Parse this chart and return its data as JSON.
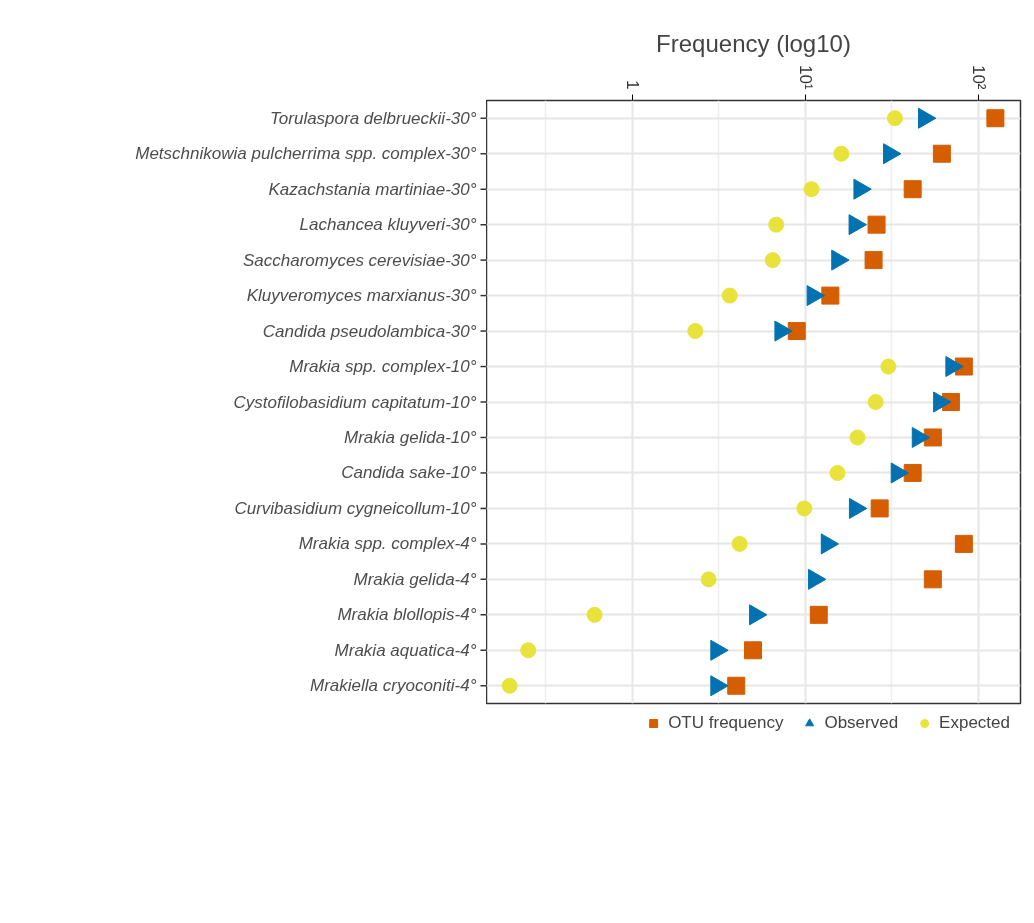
{
  "chart_data": {
    "type": "scatter",
    "xlabel": "Frequency (log10)",
    "log": "x",
    "grid": true,
    "legend": "bottom",
    "categories": [
      "Torulaspora delbrueckii-30°",
      "Metschnikowia pulcherrima spp. complex-30°",
      "Kazachstania martiniae-30°",
      "Lachancea kluyveri-30°",
      "Saccharomyces cerevisiae-30°",
      "Kluyveromyces marxianus-30°",
      "Candida pseudolambica-30°",
      "Mrakia spp. complex-10°",
      "Cystofilobasidium capitatum-10°",
      "Mrakia gelida-10°",
      "Candida sake-10°",
      "Curvibasidium cygneicollum-10°",
      "Mrakia spp. complex-4°",
      "Mrakia gelida-4°",
      "Mrakia blollopis-4°",
      "Mrakia aquatica-4°",
      "Mrakiella cryoconiti-4°"
    ],
    "orientation": "horizontal",
    "xlim": [
      0.144,
      176
    ],
    "xticks": [
      {
        "value": 1,
        "label": "1"
      },
      {
        "value": 10,
        "label": "10¹"
      },
      {
        "value": 100,
        "label": "10²"
      }
    ],
    "series": [
      {
        "name": "OTU frequency",
        "color": "#d55e00",
        "marker": "square",
        "values": [
          126,
          61.8,
          41.9,
          25.9,
          24.9,
          14.0,
          8.95,
          82.8,
          69.7,
          54.8,
          41.9,
          27.0,
          82.8,
          54.8,
          12.0,
          5.0,
          4.0
        ]
      },
      {
        "name": "Observed",
        "color": "#0072b2",
        "marker": "triangle",
        "values": [
          48.9,
          30.7,
          20.7,
          19.4,
          15.4,
          11.1,
          7.23,
          70.4,
          59.8,
          45,
          34,
          19.5,
          13.4,
          11.3,
          5.16,
          3.08,
          3.08
        ]
      },
      {
        "name": "Expected",
        "color": "#e8e33a",
        "marker": "circle",
        "values": [
          33.1,
          16.2,
          10.9,
          6.81,
          6.5,
          3.67,
          2.32,
          30.3,
          25.6,
          20.1,
          15.4,
          9.9,
          4.19,
          2.77,
          0.607,
          0.251,
          0.196
        ]
      }
    ]
  }
}
